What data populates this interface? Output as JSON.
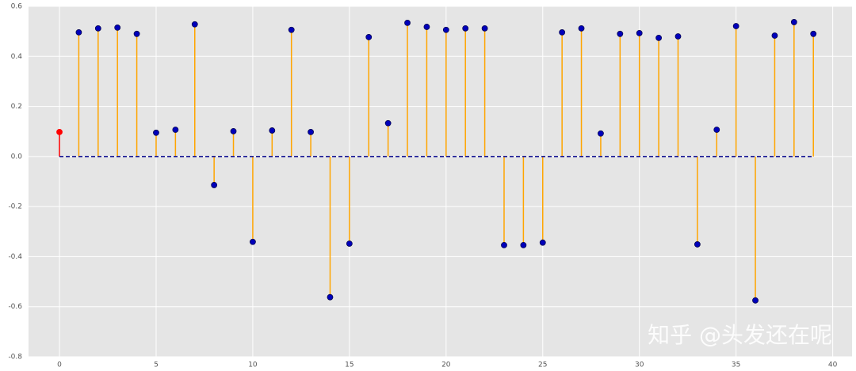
{
  "chart_data": {
    "type": "stem",
    "values": [
      0.098,
      0.496,
      0.512,
      0.515,
      0.49,
      0.095,
      0.107,
      0.528,
      -0.114,
      0.101,
      -0.341,
      0.104,
      0.506,
      0.098,
      -0.562,
      -0.348,
      0.477,
      0.133,
      0.534,
      0.518,
      0.506,
      0.512,
      0.512,
      -0.354,
      -0.354,
      -0.344,
      0.496,
      0.512,
      0.092,
      0.49,
      0.493,
      0.474,
      0.48,
      -0.351,
      0.107,
      0.521,
      -0.575,
      0.483,
      0.537,
      0.49
    ],
    "stem_color": "orange",
    "marker_color": "#0000bb",
    "highlight_index": 0,
    "highlight_color": "red",
    "baseline_color": "#00008b",
    "xlim": [
      -1.6,
      41.0
    ],
    "ylim": [
      -0.8,
      0.6
    ],
    "xticks": [
      0,
      5,
      10,
      15,
      20,
      25,
      30,
      35,
      40
    ],
    "yticks": [
      -0.8,
      -0.6,
      -0.4,
      -0.2,
      {
        "value": 0,
        "label": "0.0"
      },
      0.2,
      0.4,
      0.6
    ],
    "grid": true,
    "annotation": "知乎 @头发还在呢"
  }
}
